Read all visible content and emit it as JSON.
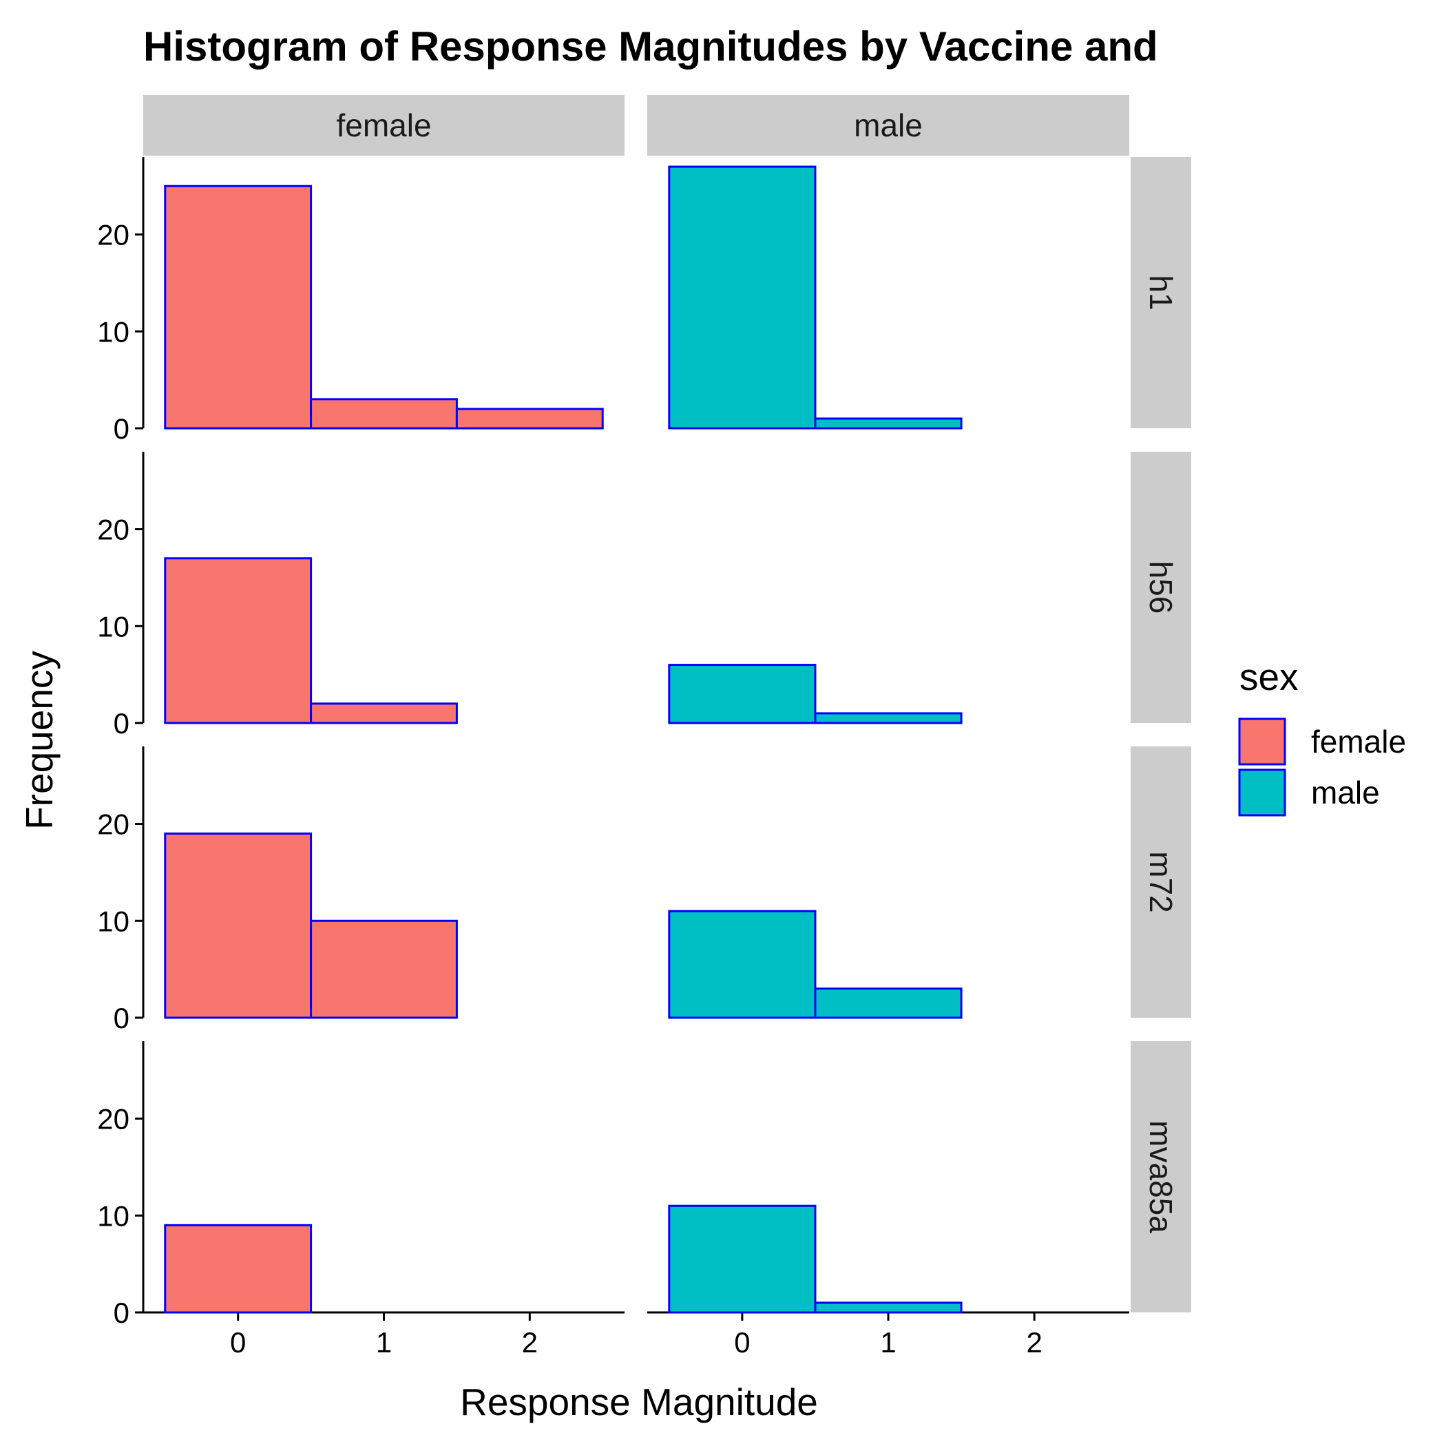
{
  "chart_data": {
    "type": "bar",
    "subtype": "faceted-histogram",
    "title": "Histogram of Response Magnitudes by Vaccine and",
    "xlabel": "Response Magnitude",
    "ylabel": "Frequency",
    "x_ticks": [
      0,
      1,
      2
    ],
    "y_ticks": [
      0,
      10,
      20
    ],
    "xlim": [
      -0.65,
      2.65
    ],
    "ylim": [
      0,
      28
    ],
    "bins": [
      0,
      1,
      2
    ],
    "bin_width": 1,
    "bar_outline_color": "#0000FF",
    "facet_columns": [
      "female",
      "male"
    ],
    "facet_rows": [
      "h1",
      "h56",
      "m72",
      "mva85a"
    ],
    "legend": {
      "title": "sex",
      "placement": "right",
      "entries": [
        {
          "label": "female",
          "color": "#F8766D"
        },
        {
          "label": "male",
          "color": "#00BFC4"
        }
      ]
    },
    "series": [
      {
        "name": "female",
        "color": "#F8766D",
        "panels": {
          "h1": [
            25,
            3,
            2
          ],
          "h56": [
            17,
            2,
            0
          ],
          "m72": [
            19,
            10,
            0
          ],
          "mva85a": [
            9,
            0,
            0
          ]
        }
      },
      {
        "name": "male",
        "color": "#00BFC4",
        "panels": {
          "h1": [
            27,
            1,
            0
          ],
          "h56": [
            6,
            1,
            0
          ],
          "m72": [
            11,
            3,
            0
          ],
          "mva85a": [
            11,
            1,
            0
          ]
        }
      }
    ],
    "grid": false
  }
}
